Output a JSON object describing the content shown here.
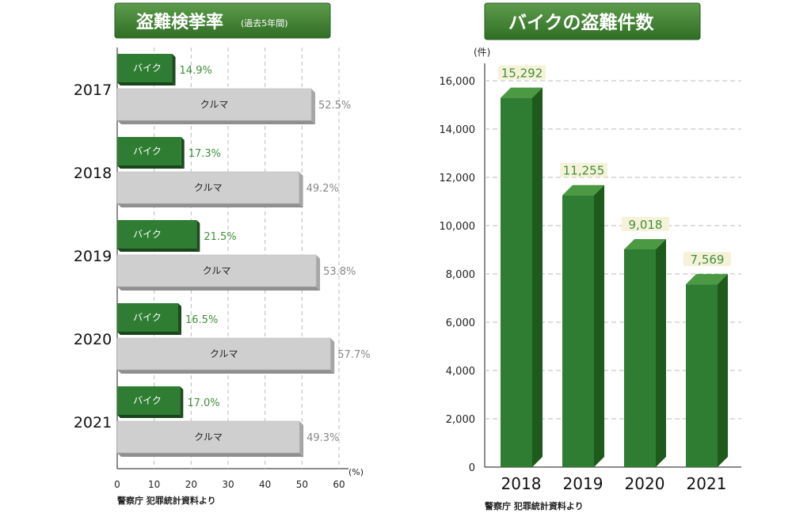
{
  "chart_data": [
    {
      "type": "bar",
      "orientation": "horizontal",
      "title": "盗難検挙率",
      "subtitle": "(過去5年間)",
      "categories": [
        "2017",
        "2018",
        "2019",
        "2020",
        "2021"
      ],
      "series": [
        {
          "name": "バイク",
          "values": [
            14.9,
            17.3,
            21.5,
            16.5,
            17.0
          ],
          "color": "#2e7d32"
        },
        {
          "name": "クルマ",
          "values": [
            52.5,
            49.2,
            53.8,
            57.7,
            49.3
          ],
          "color": "#cfcfcf"
        }
      ],
      "value_labels": {
        "バイク": [
          "14.9%",
          "17.3%",
          "21.5%",
          "16.5%",
          "17.0%"
        ],
        "クルマ": [
          "52.5%",
          "49.2%",
          "53.8%",
          "57.7%",
          "49.3%"
        ]
      },
      "x_ticks": [
        "0",
        "10",
        "20",
        "30",
        "40",
        "50",
        "60"
      ],
      "xlim": [
        0,
        60
      ],
      "unit": "(%)",
      "grid": true,
      "source": "警察庁 犯罪統計資料より"
    },
    {
      "type": "bar",
      "title": "バイクの盗難件数",
      "categories": [
        "2018",
        "2019",
        "2020",
        "2021"
      ],
      "values": [
        15292,
        11255,
        9018,
        7569
      ],
      "value_labels": [
        "15,292",
        "11,255",
        "9,018",
        "7,569"
      ],
      "color": "#2e7d32",
      "y_ticks": [
        "0",
        "2,000",
        "4,000",
        "6,000",
        "8,000",
        "10,000",
        "12,000",
        "14,000",
        "16,000"
      ],
      "ylim": [
        0,
        16000
      ],
      "unit": "(件)",
      "grid": true,
      "source": "警察庁 犯罪統計資料より"
    }
  ]
}
